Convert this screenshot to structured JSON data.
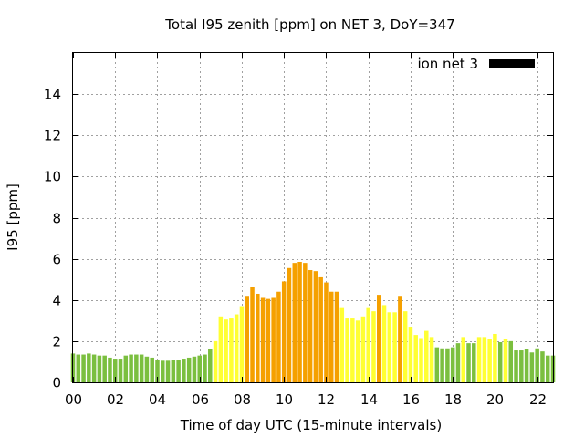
{
  "chart_data": {
    "type": "bar",
    "title": "Total I95 zenith [ppm] on NET 3, DoY=347",
    "xlabel": "Time of day UTC (15-minute intervals)",
    "ylabel": "I95 [ppm]",
    "xlim": [
      0,
      22.75
    ],
    "ylim": [
      0,
      16
    ],
    "x_tick_values": [
      0,
      2,
      4,
      6,
      8,
      10,
      12,
      14,
      16,
      18,
      20,
      22
    ],
    "x_tick_labels": [
      "00",
      "02",
      "04",
      "06",
      "08",
      "10",
      "12",
      "14",
      "16",
      "18",
      "20",
      "22"
    ],
    "y_tick_values": [
      0,
      2,
      4,
      6,
      8,
      10,
      12,
      14
    ],
    "y_tick_labels": [
      "0",
      "2",
      "4",
      "6",
      "8",
      "10",
      "12",
      "14"
    ],
    "grid": true,
    "legend": {
      "position": "top-right",
      "label": "ion net 3",
      "color": "#000000"
    },
    "colors": {
      "green": "#7bbf3f",
      "yellow": "#ffff33",
      "orange": "#f5a000"
    },
    "interval_hours": 0.25,
    "values": [
      1.4,
      1.35,
      1.35,
      1.4,
      1.35,
      1.3,
      1.3,
      1.2,
      1.15,
      1.15,
      1.3,
      1.35,
      1.35,
      1.35,
      1.25,
      1.2,
      1.1,
      1.05,
      1.05,
      1.1,
      1.1,
      1.15,
      1.2,
      1.25,
      1.3,
      1.35,
      1.6,
      2.0,
      3.2,
      3.05,
      3.1,
      3.3,
      3.7,
      4.2,
      4.65,
      4.3,
      4.1,
      4.05,
      4.1,
      4.4,
      4.9,
      5.55,
      5.8,
      5.85,
      5.8,
      5.45,
      5.4,
      5.1,
      4.85,
      4.4,
      4.4,
      3.65,
      3.1,
      3.1,
      3.0,
      3.2,
      3.65,
      3.45,
      4.25,
      3.75,
      3.4,
      3.4,
      4.2,
      3.45,
      2.7,
      2.3,
      2.15,
      2.5,
      2.2,
      1.7,
      1.65,
      1.65,
      1.7,
      1.9,
      2.2,
      1.9,
      1.9,
      2.2,
      2.2,
      2.1,
      2.35,
      1.95,
      2.1,
      2.0,
      1.55,
      1.55,
      1.6,
      1.45,
      1.65,
      1.5,
      1.3,
      1.3
    ],
    "levels": [
      "green",
      "green",
      "green",
      "green",
      "green",
      "green",
      "green",
      "green",
      "green",
      "green",
      "green",
      "green",
      "green",
      "green",
      "green",
      "green",
      "green",
      "green",
      "green",
      "green",
      "green",
      "green",
      "green",
      "green",
      "green",
      "green",
      "green",
      "yellow",
      "yellow",
      "yellow",
      "yellow",
      "yellow",
      "yellow",
      "orange",
      "orange",
      "orange",
      "orange",
      "orange",
      "orange",
      "orange",
      "orange",
      "orange",
      "orange",
      "orange",
      "orange",
      "orange",
      "orange",
      "orange",
      "orange",
      "orange",
      "orange",
      "yellow",
      "yellow",
      "yellow",
      "yellow",
      "yellow",
      "yellow",
      "yellow",
      "orange",
      "yellow",
      "yellow",
      "yellow",
      "orange",
      "yellow",
      "yellow",
      "yellow",
      "yellow",
      "yellow",
      "yellow",
      "green",
      "green",
      "green",
      "green",
      "green",
      "yellow",
      "green",
      "green",
      "yellow",
      "yellow",
      "yellow",
      "yellow",
      "green",
      "yellow",
      "green",
      "green",
      "green",
      "green",
      "green",
      "green",
      "green",
      "green",
      "green"
    ]
  }
}
